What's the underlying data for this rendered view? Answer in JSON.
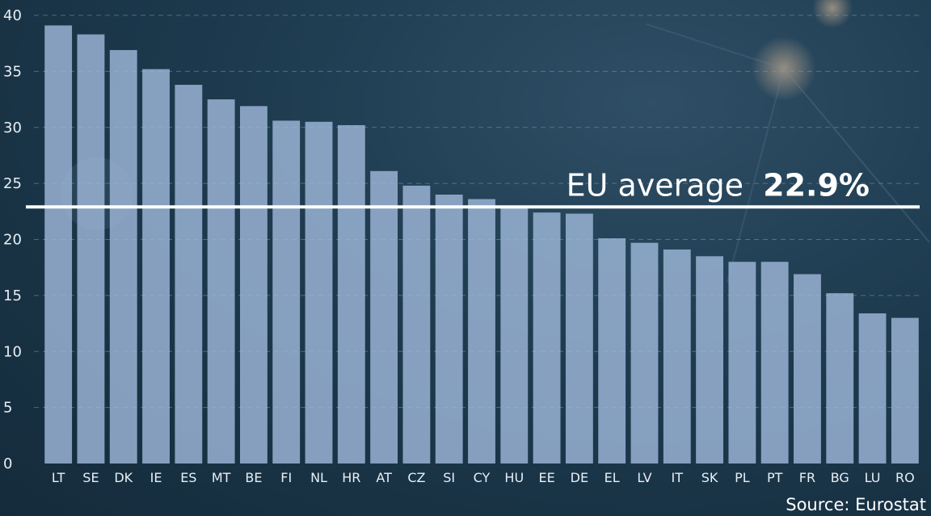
{
  "chart_data": {
    "type": "bar",
    "categories": [
      "LT",
      "SE",
      "DK",
      "IE",
      "ES",
      "MT",
      "BE",
      "FI",
      "NL",
      "HR",
      "AT",
      "CZ",
      "SI",
      "CY",
      "HU",
      "EE",
      "DE",
      "EL",
      "LV",
      "IT",
      "SK",
      "PL",
      "PT",
      "FR",
      "BG",
      "LU",
      "RO"
    ],
    "values": [
      39.1,
      38.3,
      36.9,
      35.2,
      33.8,
      32.5,
      31.9,
      30.6,
      30.5,
      30.2,
      26.1,
      24.8,
      24.0,
      23.6,
      22.9,
      22.4,
      22.3,
      20.1,
      19.7,
      19.1,
      18.5,
      18.0,
      18.0,
      16.9,
      15.2,
      13.4,
      13.0
    ],
    "ylim": [
      0,
      40
    ],
    "yticks": [
      0,
      5,
      10,
      15,
      20,
      25,
      30,
      35,
      40
    ],
    "grid": true,
    "average": {
      "value": 22.9,
      "label": "EU average",
      "value_label": "22.9%"
    },
    "source": "Source: Eurostat"
  },
  "colors": {
    "bar": "#9fb7d9",
    "line": "#ffffff",
    "background": "#1d3a4e"
  }
}
